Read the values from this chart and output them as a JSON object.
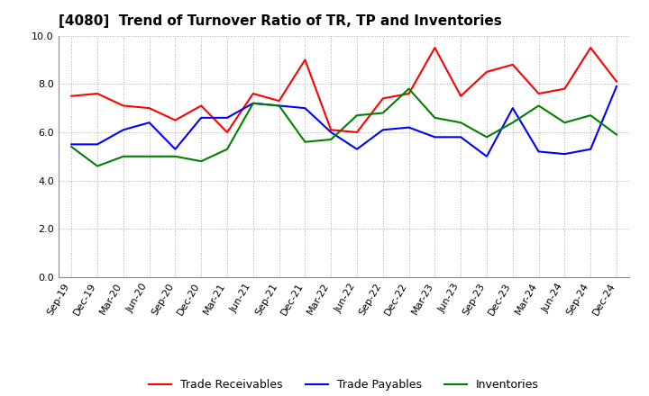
{
  "title": "[4080]  Trend of Turnover Ratio of TR, TP and Inventories",
  "labels": [
    "Sep-19",
    "Dec-19",
    "Mar-20",
    "Jun-20",
    "Sep-20",
    "Dec-20",
    "Mar-21",
    "Jun-21",
    "Sep-21",
    "Dec-21",
    "Mar-22",
    "Jun-22",
    "Sep-22",
    "Dec-22",
    "Mar-23",
    "Jun-23",
    "Sep-23",
    "Dec-23",
    "Mar-24",
    "Jun-24",
    "Sep-24",
    "Dec-24"
  ],
  "trade_receivables": [
    7.5,
    7.6,
    7.1,
    7.0,
    6.5,
    7.1,
    6.0,
    7.6,
    7.3,
    9.0,
    6.1,
    6.0,
    7.4,
    7.6,
    9.5,
    7.5,
    8.5,
    8.8,
    7.6,
    7.8,
    9.5,
    8.1
  ],
  "trade_payables": [
    5.5,
    5.5,
    6.1,
    6.4,
    5.3,
    6.6,
    6.6,
    7.2,
    7.1,
    7.0,
    6.0,
    5.3,
    6.1,
    6.2,
    5.8,
    5.8,
    5.0,
    7.0,
    5.2,
    5.1,
    5.3,
    7.9
  ],
  "inventories": [
    5.4,
    4.6,
    5.0,
    5.0,
    5.0,
    4.8,
    5.3,
    7.2,
    7.1,
    5.6,
    5.7,
    6.7,
    6.8,
    7.8,
    6.6,
    6.4,
    5.8,
    6.4,
    7.1,
    6.4,
    6.7,
    5.9
  ],
  "ylim": [
    0.0,
    10.0
  ],
  "yticks": [
    0.0,
    2.0,
    4.0,
    6.0,
    8.0,
    10.0
  ],
  "color_tr": "#ff0000",
  "color_tp": "#0000ff",
  "color_inv": "#008000",
  "legend_labels": [
    "Trade Receivables",
    "Trade Payables",
    "Inventories"
  ],
  "background_color": "#ffffff",
  "grid_color": "#aaaaaa",
  "linewidth": 1.5,
  "title_fontsize": 11,
  "tick_fontsize": 8,
  "legend_fontsize": 9
}
